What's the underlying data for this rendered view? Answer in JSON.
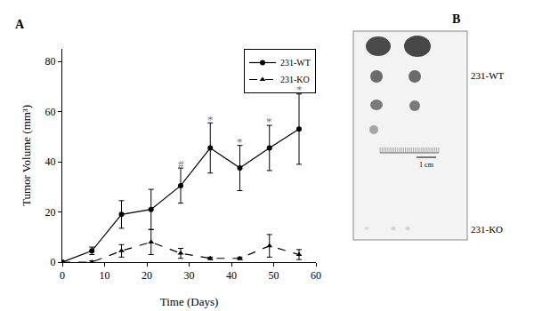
{
  "chart_data": {
    "type": "line",
    "panel_label": "A",
    "x_label": "Time (Days)",
    "y_label": "Tumor Volume (mm³)",
    "xlim": [
      0,
      60
    ],
    "xticks": [
      0,
      10,
      20,
      30,
      40,
      50,
      60
    ],
    "ylim": [
      0,
      85
    ],
    "yticks": [
      0,
      20,
      40,
      60,
      80
    ],
    "grid": false,
    "legend": "top right",
    "series": [
      {
        "name": "231-WT",
        "color": "#000000",
        "marker": "circle",
        "line_style": "solid",
        "x": [
          0,
          7,
          14,
          21,
          28,
          35,
          42,
          49,
          56
        ],
        "values": [
          0,
          4.5,
          19,
          21,
          30.5,
          45.5,
          37.5,
          45.5,
          53
        ],
        "error": [
          0,
          1.5,
          5.5,
          8,
          7,
          10,
          9,
          9,
          14
        ]
      },
      {
        "name": "231-KO",
        "color": "#000000",
        "marker": "triangle-up",
        "line_style": "dash",
        "x": [
          0,
          7,
          14,
          21,
          28,
          35,
          42,
          49,
          56
        ],
        "values": [
          0,
          0,
          4.5,
          8,
          3.5,
          1.5,
          1.5,
          6.5,
          3
        ],
        "error": [
          0,
          0.5,
          2.5,
          5,
          2,
          0.5,
          0.5,
          4.5,
          2
        ]
      }
    ],
    "annotations": [
      {
        "text": "#",
        "x": 28,
        "y": 39
      },
      {
        "text": "*",
        "x": 35,
        "y": 57
      },
      {
        "text": "*",
        "x": 42,
        "y": 48
      },
      {
        "text": "*",
        "x": 49,
        "y": 56
      },
      {
        "text": "*",
        "x": 56,
        "y": 69
      }
    ]
  },
  "photo": {
    "panel_label": "B",
    "labels": [
      "231-WT",
      "231-KO"
    ],
    "scale_bar": "1 cm"
  }
}
